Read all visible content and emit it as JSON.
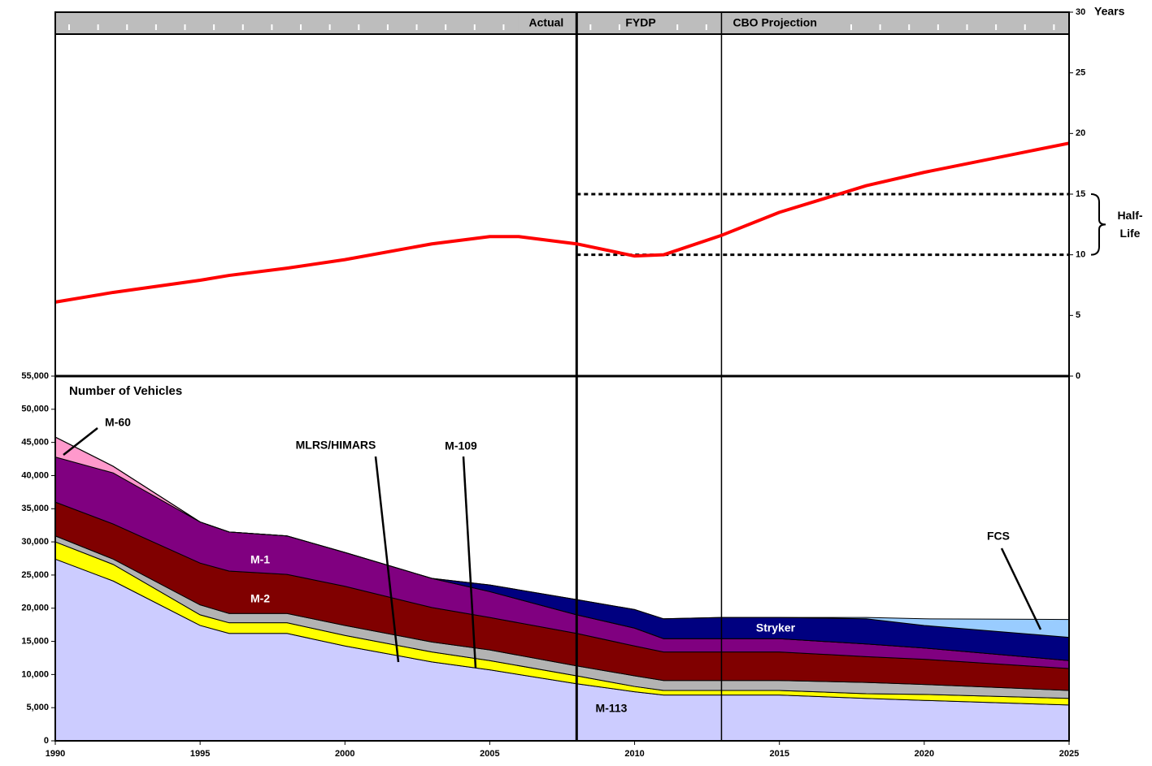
{
  "chart_data": [
    {
      "type": "line",
      "y_label": "Years",
      "x": [
        1990,
        1992,
        1995,
        1996,
        1998,
        2000,
        2003,
        2005,
        2006,
        2008,
        2010,
        2011,
        2013,
        2015,
        2018,
        2020,
        2025
      ],
      "values": [
        6.1,
        6.9,
        7.9,
        8.3,
        8.9,
        9.6,
        10.9,
        11.5,
        11.5,
        10.9,
        9.9,
        10.0,
        11.6,
        13.5,
        15.7,
        16.8,
        19.2
      ],
      "color": "#ff0000",
      "ylim": [
        0,
        30
      ],
      "yticks": [
        0,
        5,
        10,
        15,
        20,
        25,
        30
      ],
      "xlim": [
        1990,
        2025
      ],
      "periods": [
        {
          "label": "Actual",
          "start": 1990,
          "end": 2008
        },
        {
          "label": "FYDP",
          "start": 2008,
          "end": 2013
        },
        {
          "label": "CBO Projection",
          "start": 2013,
          "end": 2025
        }
      ],
      "annotation": {
        "lines": [
          "Half-",
          "Life"
        ],
        "y": [
          10,
          15
        ],
        "x_start": 2008
      }
    },
    {
      "type": "area",
      "stacked": true,
      "y_label": "Number of Vehicles",
      "x": [
        1990,
        1992,
        1995,
        1996,
        1998,
        2000,
        2003,
        2005,
        2008,
        2010,
        2011,
        2013,
        2015,
        2018,
        2020,
        2025
      ],
      "series": [
        {
          "name": "M-113",
          "color": "#ccccff",
          "values": [
            27400,
            24100,
            17400,
            16200,
            16200,
            14300,
            11900,
            10700,
            8600,
            7400,
            6900,
            6900,
            6900,
            6400,
            6100,
            5400
          ]
        },
        {
          "name": "M-109",
          "color": "#ffff00",
          "values": [
            2600,
            2500,
            1600,
            1600,
            1600,
            1600,
            1500,
            1400,
            1200,
            800,
            700,
            700,
            700,
            700,
            900,
            1000
          ]
        },
        {
          "name": "MLRS/HIMARS",
          "color": "#b3b3b3",
          "values": [
            900,
            800,
            1500,
            1400,
            1400,
            1500,
            1500,
            1600,
            1500,
            1600,
            1500,
            1500,
            1500,
            1700,
            1500,
            1200
          ]
        },
        {
          "name": "M-2",
          "color": "#800000",
          "values": [
            5100,
            5300,
            6300,
            6400,
            5900,
            5900,
            5200,
            4900,
            4900,
            4500,
            4300,
            4300,
            4300,
            3900,
            3800,
            3300
          ]
        },
        {
          "name": "M-1",
          "color": "#800080",
          "values": [
            6800,
            7700,
            6200,
            5900,
            5800,
            5100,
            4400,
            3900,
            2800,
            2700,
            2000,
            2000,
            2000,
            1900,
            1700,
            1200
          ]
        },
        {
          "name": "M-60",
          "color": "#ff99cc",
          "values": [
            3000,
            1000,
            0,
            0,
            0,
            0,
            0,
            0,
            0,
            0,
            0,
            0,
            0,
            0,
            0,
            0
          ]
        },
        {
          "name": "Stryker",
          "color": "#000080",
          "values": [
            0,
            0,
            0,
            0,
            0,
            0,
            0,
            1000,
            2300,
            2800,
            3000,
            3200,
            3200,
            3800,
            3400,
            3500
          ]
        },
        {
          "name": "FCS",
          "color": "#99ccff",
          "values": [
            0,
            0,
            0,
            0,
            0,
            0,
            0,
            0,
            0,
            0,
            0,
            0,
            0,
            200,
            1000,
            2700
          ]
        }
      ],
      "ylim": [
        0,
        55000
      ],
      "yticks": [
        0,
        {
          "value": 5000,
          "label": "5,000"
        },
        {
          "value": 10000,
          "label": "10,000"
        },
        {
          "value": 15000,
          "label": "15,000"
        },
        {
          "value": 20000,
          "label": "20,000"
        },
        {
          "value": 25000,
          "label": "25,000"
        },
        {
          "value": 30000,
          "label": "30,000"
        },
        {
          "value": 35000,
          "label": "35,000"
        },
        {
          "value": 40000,
          "label": "40,000"
        },
        {
          "value": 45000,
          "label": "45,000"
        },
        {
          "value": 50000,
          "label": "50,000"
        },
        {
          "value": 55000,
          "label": "55,000"
        }
      ],
      "xlim": [
        1990,
        2025
      ],
      "xticks": [
        1990,
        1995,
        2000,
        2005,
        2010,
        2015,
        2020,
        2025
      ]
    }
  ]
}
